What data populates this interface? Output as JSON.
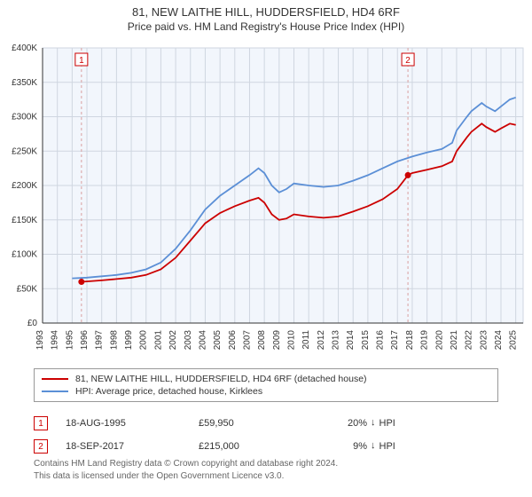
{
  "title": "81, NEW LAITHE HILL, HUDDERSFIELD, HD4 6RF",
  "subtitle": "Price paid vs. HM Land Registry's House Price Index (HPI)",
  "chart": {
    "type": "line",
    "plot_bg": "#f2f6fc",
    "outer_bg": "#ffffff",
    "grid_color": "#cfd6e0",
    "axis_color": "#333333",
    "x_years": [
      1993,
      1994,
      1995,
      1996,
      1997,
      1998,
      1999,
      2000,
      2001,
      2002,
      2003,
      2004,
      2005,
      2006,
      2007,
      2008,
      2009,
      2010,
      2011,
      2012,
      2013,
      2014,
      2015,
      2016,
      2017,
      2018,
      2019,
      2020,
      2021,
      2022,
      2023,
      2024,
      2025
    ],
    "x_range": [
      1993,
      2025.5
    ],
    "y_range": [
      0,
      400000
    ],
    "y_ticks": [
      0,
      50000,
      100000,
      150000,
      200000,
      250000,
      300000,
      350000,
      400000
    ],
    "y_tick_labels": [
      "£0",
      "£50K",
      "£100K",
      "£150K",
      "£200K",
      "£250K",
      "£300K",
      "£350K",
      "£400K"
    ],
    "series": [
      {
        "name": "81, NEW LAITHE HILL, HUDDERSFIELD, HD4 6RF (detached house)",
        "color": "#cc0000",
        "width": 1.8,
        "data": [
          [
            1995.63,
            59950
          ],
          [
            1996,
            60500
          ],
          [
            1997,
            62000
          ],
          [
            1998,
            64000
          ],
          [
            1999,
            66000
          ],
          [
            2000,
            70000
          ],
          [
            2001,
            78000
          ],
          [
            2002,
            95000
          ],
          [
            2003,
            120000
          ],
          [
            2004,
            145000
          ],
          [
            2005,
            160000
          ],
          [
            2006,
            170000
          ],
          [
            2007,
            178000
          ],
          [
            2007.6,
            182000
          ],
          [
            2008,
            175000
          ],
          [
            2008.5,
            158000
          ],
          [
            2009,
            150000
          ],
          [
            2009.5,
            152000
          ],
          [
            2010,
            158000
          ],
          [
            2011,
            155000
          ],
          [
            2012,
            153000
          ],
          [
            2013,
            155000
          ],
          [
            2014,
            162000
          ],
          [
            2015,
            170000
          ],
          [
            2016,
            180000
          ],
          [
            2017,
            195000
          ],
          [
            2017.71,
            215000
          ],
          [
            2018,
            218000
          ],
          [
            2019,
            223000
          ],
          [
            2020,
            228000
          ],
          [
            2020.7,
            235000
          ],
          [
            2021,
            250000
          ],
          [
            2021.7,
            270000
          ],
          [
            2022,
            278000
          ],
          [
            2022.7,
            290000
          ],
          [
            2023,
            285000
          ],
          [
            2023.6,
            278000
          ],
          [
            2024,
            283000
          ],
          [
            2024.6,
            290000
          ],
          [
            2025,
            288000
          ]
        ]
      },
      {
        "name": "HPI: Average price, detached house, Kirklees",
        "color": "#5b8fd6",
        "width": 1.8,
        "data": [
          [
            1995,
            65000
          ],
          [
            1996,
            66000
          ],
          [
            1997,
            68000
          ],
          [
            1998,
            70000
          ],
          [
            1999,
            73000
          ],
          [
            2000,
            78000
          ],
          [
            2001,
            88000
          ],
          [
            2002,
            108000
          ],
          [
            2003,
            135000
          ],
          [
            2004,
            165000
          ],
          [
            2005,
            185000
          ],
          [
            2006,
            200000
          ],
          [
            2007,
            215000
          ],
          [
            2007.6,
            225000
          ],
          [
            2008,
            218000
          ],
          [
            2008.5,
            200000
          ],
          [
            2009,
            190000
          ],
          [
            2009.5,
            195000
          ],
          [
            2010,
            203000
          ],
          [
            2011,
            200000
          ],
          [
            2012,
            198000
          ],
          [
            2013,
            200000
          ],
          [
            2014,
            207000
          ],
          [
            2015,
            215000
          ],
          [
            2016,
            225000
          ],
          [
            2017,
            235000
          ],
          [
            2018,
            242000
          ],
          [
            2019,
            248000
          ],
          [
            2020,
            253000
          ],
          [
            2020.7,
            262000
          ],
          [
            2021,
            280000
          ],
          [
            2021.7,
            300000
          ],
          [
            2022,
            308000
          ],
          [
            2022.7,
            320000
          ],
          [
            2023,
            315000
          ],
          [
            2023.6,
            308000
          ],
          [
            2024,
            315000
          ],
          [
            2024.6,
            325000
          ],
          [
            2025,
            328000
          ]
        ]
      }
    ],
    "markers": [
      {
        "n": 1,
        "x": 1995.63,
        "y": 59950,
        "color": "#cc0000"
      },
      {
        "n": 2,
        "x": 2017.71,
        "y": 215000,
        "color": "#cc0000"
      }
    ],
    "marker_vlines_color": "#d9a0a0",
    "marker_vlines_dash": "3,3"
  },
  "legend": [
    {
      "color": "#cc0000",
      "label": "81, NEW LAITHE HILL, HUDDERSFIELD, HD4 6RF (detached house)"
    },
    {
      "color": "#5b8fd6",
      "label": "HPI: Average price, detached house, Kirklees"
    }
  ],
  "transactions": [
    {
      "n": 1,
      "color": "#cc0000",
      "date": "18-AUG-1995",
      "price": "£59,950",
      "pct": "20%",
      "dir": "↓",
      "rel": "HPI"
    },
    {
      "n": 2,
      "color": "#cc0000",
      "date": "18-SEP-2017",
      "price": "£215,000",
      "pct": "9%",
      "dir": "↓",
      "rel": "HPI"
    }
  ],
  "credit_line1": "Contains HM Land Registry data © Crown copyright and database right 2024.",
  "credit_line2": "This data is licensed under the Open Government Licence v3.0."
}
